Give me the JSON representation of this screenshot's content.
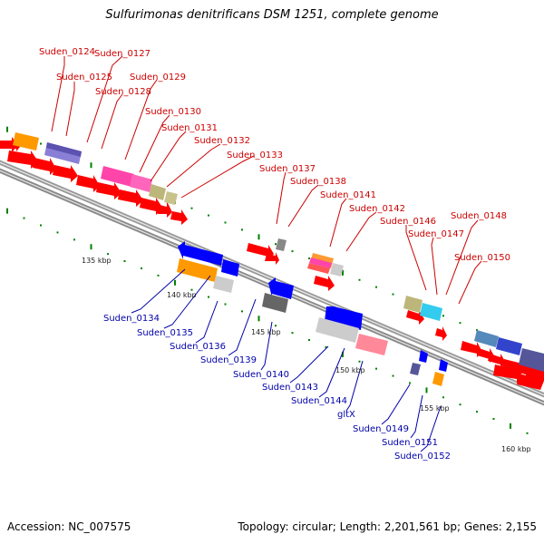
{
  "title": "Sulfurimonas denitrificans DSM 1251, complete genome",
  "footer": {
    "accession": "Accession: NC_007575",
    "topology": "Topology: circular; Length: 2,201,561 bp; Genes: 2,155"
  },
  "colors": {
    "forward_label": "#cc0000",
    "reverse_label": "#0000aa",
    "forward_cds": "#ff0000",
    "reverse_cds": "#0000ff",
    "backbone": "#888888",
    "tick": "#008000"
  },
  "kbp_labels": [
    "135 kbp",
    "140 kbp",
    "145 kbp",
    "150 kbp",
    "155 kbp",
    "160 kbp"
  ],
  "forward_genes": [
    "Suden_0124",
    "Suden_0125",
    "Suden_0127",
    "Suden_0128",
    "Suden_0129",
    "Suden_0130",
    "Suden_0131",
    "Suden_0132",
    "Suden_0133",
    "Suden_0137",
    "Suden_0138",
    "Suden_0141",
    "Suden_0142",
    "Suden_0146",
    "Suden_0147",
    "Suden_0148",
    "Suden_0150"
  ],
  "reverse_genes": [
    "Suden_0134",
    "Suden_0135",
    "Suden_0136",
    "Suden_0139",
    "Suden_0140",
    "Suden_0143",
    "Suden_0144",
    "gltX",
    "Suden_0149",
    "Suden_0151",
    "Suden_0152"
  ]
}
